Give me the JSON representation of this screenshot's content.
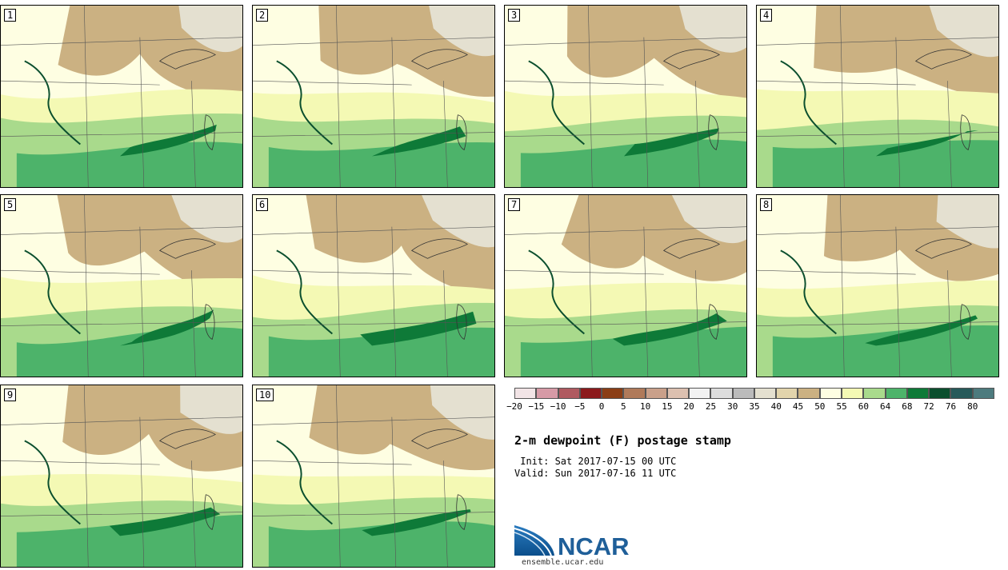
{
  "panels": [
    {
      "id": "1",
      "label": "1"
    },
    {
      "id": "2",
      "label": "2"
    },
    {
      "id": "3",
      "label": "3"
    },
    {
      "id": "4",
      "label": "4"
    },
    {
      "id": "5",
      "label": "5"
    },
    {
      "id": "6",
      "label": "6"
    },
    {
      "id": "7",
      "label": "7"
    },
    {
      "id": "8",
      "label": "8"
    },
    {
      "id": "9",
      "label": "9"
    },
    {
      "id": "10",
      "label": "10"
    }
  ],
  "colorbar": {
    "colors": [
      "#f2e4e6",
      "#d69aa6",
      "#b05a60",
      "#8c1a1c",
      "#8b3e16",
      "#b07a5a",
      "#c9a08a",
      "#dcc0b0",
      "#f2f2f2",
      "#dddddd",
      "#bbbbbb",
      "#e4e0d0",
      "#e2d4ac",
      "#cbb182",
      "#fefee2",
      "#f4f9b4",
      "#a9da8c",
      "#4db36a",
      "#0e7a38",
      "#0b4f2e",
      "#275a5a",
      "#4d7b7e"
    ],
    "labels": [
      "-20",
      "-15",
      "-10",
      "-5",
      "0",
      "5",
      "10",
      "15",
      "20",
      "25",
      "30",
      "35",
      "40",
      "45",
      "50",
      "55",
      "60",
      "64",
      "68",
      "72",
      "76",
      "80"
    ]
  },
  "title": "2-m dewpoint (F) postage stamp",
  "init": " Init: Sat 2017-07-15 00 UTC",
  "valid": "Valid: Sun 2017-07-16 11 UTC",
  "logo_text": "NCAR",
  "url": "ensemble.ucar.edu"
}
